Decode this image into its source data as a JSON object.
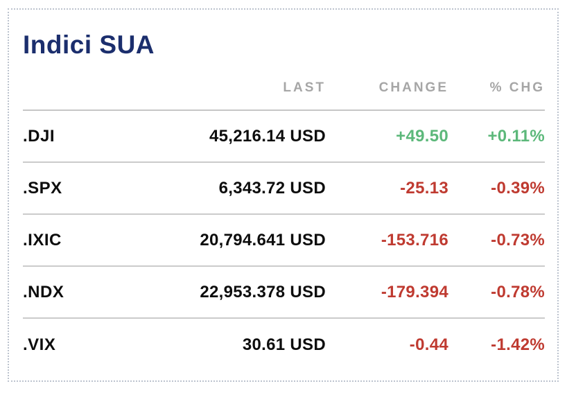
{
  "card": {
    "title": "Indici SUA",
    "columns": [
      {
        "key": "last",
        "label": "LAST"
      },
      {
        "key": "change",
        "label": "CHANGE"
      },
      {
        "key": "pct",
        "label": "% CHG"
      }
    ],
    "rows": [
      {
        "symbol": ".DJI",
        "last": "45,216.14 USD",
        "change": "+49.50",
        "pct": "+0.11%",
        "direction": "up"
      },
      {
        "symbol": ".SPX",
        "last": "6,343.72 USD",
        "change": "-25.13",
        "pct": "-0.39%",
        "direction": "down"
      },
      {
        "symbol": ".IXIC",
        "last": "20,794.641 USD",
        "change": "-153.716",
        "pct": "-0.73%",
        "direction": "down"
      },
      {
        "symbol": ".NDX",
        "last": "22,953.378 USD",
        "change": "-179.394",
        "pct": "-0.78%",
        "direction": "down"
      },
      {
        "symbol": ".VIX",
        "last": "30.61 USD",
        "change": "-0.44",
        "pct": "-1.42%",
        "direction": "down"
      }
    ],
    "colors": {
      "title": "#1b2e6d",
      "header_text": "#a6a6a6",
      "body_text": "#0d0d0d",
      "up": "#5cb87a",
      "down": "#bf3a30",
      "divider": "#cbcbcb",
      "card_border": "#bcc3ce"
    }
  },
  "chart_data": {
    "type": "table",
    "title": "Indici SUA",
    "columns": [
      "symbol",
      "LAST (USD)",
      "CHANGE",
      "% CHG"
    ],
    "rows": [
      {
        "symbol": ".DJI",
        "last_usd": 45216.14,
        "change": 49.5,
        "pct_chg": 0.11
      },
      {
        "symbol": ".SPX",
        "last_usd": 6343.72,
        "change": -25.13,
        "pct_chg": -0.39
      },
      {
        "symbol": ".IXIC",
        "last_usd": 20794.641,
        "change": -153.716,
        "pct_chg": -0.73
      },
      {
        "symbol": ".NDX",
        "last_usd": 22953.378,
        "change": -179.394,
        "pct_chg": -0.78
      },
      {
        "symbol": ".VIX",
        "last_usd": 30.61,
        "change": -0.44,
        "pct_chg": -1.42
      }
    ]
  }
}
